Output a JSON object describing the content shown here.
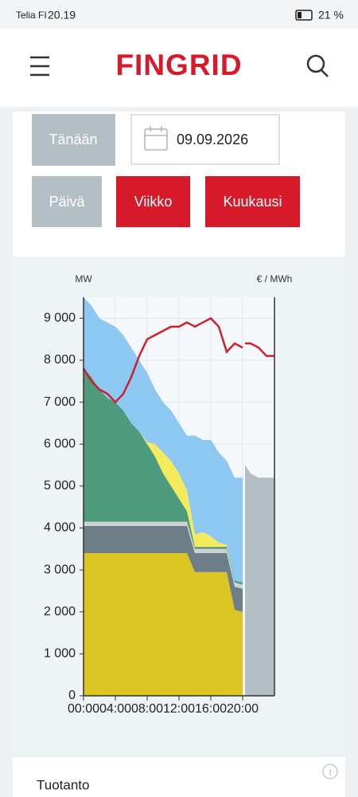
{
  "status_bar": {
    "carrier": "Telia FI",
    "time": "20.19",
    "battery": "21 %"
  },
  "header": {
    "logo": "FINGRID"
  },
  "controls": {
    "today": "Tänään",
    "date": "09.09.2026",
    "periods": [
      "Päivä",
      "Viikko",
      "Kuukausi"
    ]
  },
  "chart_data": {
    "type": "area",
    "stacked": true,
    "y_label": "MW",
    "y2_label": "€ / MWh",
    "grid": true,
    "x": [
      0,
      1,
      2,
      3,
      4,
      5,
      6,
      7,
      8,
      9,
      10,
      11,
      12,
      13,
      14,
      15,
      16,
      17,
      18,
      19,
      20
    ],
    "xlim": [
      0,
      24
    ],
    "xticks": [
      {
        "value": 0,
        "label": "00:00"
      },
      {
        "value": 4,
        "label": "04:00"
      },
      {
        "value": 8,
        "label": "08:00"
      },
      {
        "value": 12,
        "label": "12:00"
      },
      {
        "value": 16,
        "label": "16:00"
      },
      {
        "value": 20,
        "label": "20:00"
      }
    ],
    "ylim": [
      0,
      9500
    ],
    "yticks": [
      0,
      {
        "value": 1000,
        "label": "1 000"
      },
      {
        "value": 2000,
        "label": "2 000"
      },
      {
        "value": 3000,
        "label": "3 000"
      },
      {
        "value": 4000,
        "label": "4 000"
      },
      {
        "value": 5000,
        "label": "5 000"
      },
      {
        "value": 6000,
        "label": "6 000"
      },
      {
        "value": 7000,
        "label": "7 000"
      },
      {
        "value": 8000,
        "label": "8 000"
      },
      {
        "value": 9000,
        "label": "9 000"
      }
    ],
    "y2lim": [
      0,
      95
    ],
    "series": [
      {
        "color": "#dcc523",
        "values": [
          3400,
          3400,
          3400,
          3400,
          3400,
          3400,
          3400,
          3400,
          3400,
          3400,
          3400,
          3400,
          3400,
          3400,
          2950,
          2950,
          2950,
          2950,
          2950,
          2050,
          2000
        ]
      },
      {
        "color": "#6e7e88",
        "values": [
          650,
          650,
          650,
          650,
          650,
          650,
          650,
          650,
          650,
          650,
          650,
          650,
          650,
          650,
          450,
          450,
          450,
          450,
          450,
          550,
          550
        ]
      },
      {
        "color": "#cfd1d5",
        "values": [
          100,
          100,
          100,
          100,
          100,
          100,
          100,
          100,
          100,
          100,
          100,
          100,
          100,
          100,
          100,
          100,
          100,
          100,
          100,
          100,
          100
        ]
      },
      {
        "color": "#4e9a7c",
        "values": [
          3650,
          3450,
          3150,
          2950,
          2850,
          2650,
          2350,
          2150,
          1850,
          1550,
          1150,
          850,
          550,
          250,
          50,
          50,
          50,
          50,
          50,
          50,
          50
        ]
      },
      {
        "color": "#f3ea5c",
        "values": [
          0,
          0,
          0,
          0,
          0,
          0,
          0,
          0,
          50,
          300,
          500,
          600,
          600,
          500,
          300,
          350,
          250,
          100,
          50,
          0,
          0
        ]
      },
      {
        "color": "#8cc8f2",
        "values": [
          1700,
          1700,
          1700,
          1800,
          1800,
          1800,
          1800,
          1700,
          1650,
          1300,
          1200,
          1200,
          1200,
          1300,
          2350,
          2200,
          2300,
          2150,
          2000,
          2450,
          2500
        ]
      }
    ],
    "forecast": {
      "color": "#b4bfc5",
      "x": [
        20.3,
        21,
        22,
        23,
        24
      ],
      "values": [
        5500,
        5300,
        5200,
        5200,
        5200
      ]
    },
    "price": {
      "axis": "y2",
      "color": "#cf1f2e",
      "x": [
        0,
        1,
        2,
        3,
        4,
        5,
        6,
        7,
        8,
        9,
        10,
        11,
        12,
        13,
        14,
        15,
        16,
        17,
        18,
        19,
        20,
        20.15,
        20.3,
        21,
        22,
        23,
        24
      ],
      "values": [
        78,
        75,
        73,
        72,
        70,
        72,
        76,
        81,
        85,
        86,
        87,
        88,
        88,
        89,
        88,
        89,
        90,
        88,
        82,
        84,
        83,
        null,
        84,
        84,
        83,
        81,
        81
      ]
    }
  },
  "section": {
    "title": "Tuotanto"
  }
}
